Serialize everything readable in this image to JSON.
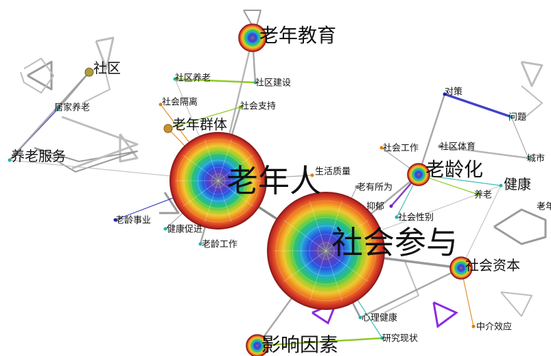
{
  "nodes": [
    {
      "id": "laonianren",
      "label": "老年人",
      "size": "xl",
      "label_size": "xl",
      "color": "#888888",
      "rings": true
    },
    {
      "id": "shehuicanyu",
      "label": "社会参与",
      "size": "xxl",
      "label_size": "xl",
      "color": "#888888",
      "rings": true
    },
    {
      "id": "laoninajiaoyu",
      "label": "老年教育",
      "size": "m",
      "label_size": "l",
      "color": "#c0504d",
      "rings": true
    },
    {
      "id": "laolinghua",
      "label": "老龄化",
      "size": "s",
      "label_size": "l",
      "color": "#c0504d",
      "rings": true
    },
    {
      "id": "shehuiziben",
      "label": "社会资本",
      "size": "s",
      "label_size": "m",
      "color": "#d4a017",
      "rings": true
    },
    {
      "id": "yingxiangyinsu",
      "label": "影响因素",
      "size": "s",
      "label_size": "l",
      "color": "#c0504d",
      "rings": true
    },
    {
      "id": "laoniangunti",
      "label": "老年群体",
      "size": "xs",
      "label_size": "m",
      "color": "#c8922c"
    },
    {
      "id": "shequ",
      "label": "社区",
      "size": "xs",
      "label_size": "m",
      "color": "#a9a040"
    },
    {
      "id": "yanglaofuwu",
      "label": "养老服务",
      "size": "xxs",
      "label_size": "m",
      "color": "#20b2aa"
    },
    {
      "id": "jujiayanglao",
      "label": "居家养老",
      "size": "xxs",
      "label_size": "s",
      "color": "#20b2aa"
    },
    {
      "id": "shequyanglao",
      "label": "社区养老",
      "size": "xxs",
      "label_size": "s",
      "color": "#20b2aa"
    },
    {
      "id": "shequjianshe",
      "label": "社区建设",
      "size": "xxs",
      "label_size": "s",
      "color": "#20b2aa"
    },
    {
      "id": "shehuigeli",
      "label": "社会隔离",
      "size": "xxs",
      "label_size": "s",
      "color": "#e07b00"
    },
    {
      "id": "shehuizhichi",
      "label": "社会支持",
      "size": "xxs",
      "label_size": "s",
      "color": "#7cc000"
    },
    {
      "id": "shenghuozhiliang",
      "label": "生活质量",
      "size": "xxs",
      "label_size": "s",
      "color": "#e07b00"
    },
    {
      "id": "laoyousuowei",
      "label": "老有所为",
      "size": "xxs",
      "label_size": "s",
      "color": "#888888"
    },
    {
      "id": "shehuigongzuo",
      "label": "社会工作",
      "size": "xxs",
      "label_size": "s",
      "color": "#e07b00"
    },
    {
      "id": "shequtiyu",
      "label": "社区体育",
      "size": "xxs",
      "label_size": "s",
      "color": "#888888"
    },
    {
      "id": "duice",
      "label": "对策",
      "size": "xxs",
      "label_size": "s",
      "color": "#2020c0"
    },
    {
      "id": "wenti",
      "label": "问题",
      "size": "xxs",
      "label_size": "s",
      "color": "#20b2aa"
    },
    {
      "id": "chengshi",
      "label": "城市",
      "size": "xxs",
      "label_size": "s",
      "color": "#20b2aa"
    },
    {
      "id": "jiankang",
      "label": "健康",
      "size": "xxs",
      "label_size": "m",
      "color": "#20b2aa"
    },
    {
      "id": "yanglao",
      "label": "养老",
      "size": "xxs",
      "label_size": "s",
      "color": "#7cc000"
    },
    {
      "id": "laonian",
      "label": "老年",
      "size": "xxs",
      "label_size": "s",
      "color": "#888888"
    },
    {
      "id": "yizheng",
      "label": "抑郁",
      "size": "xxs",
      "label_size": "s",
      "color": "#7020c0"
    },
    {
      "id": "shehuixingbie",
      "label": "社会性别",
      "size": "xxs",
      "label_size": "s",
      "color": "#20b2aa"
    },
    {
      "id": "laolingshiye",
      "label": "老龄事业",
      "size": "xxs",
      "label_size": "s",
      "color": "#2020c0"
    },
    {
      "id": "jiankangcujin",
      "label": "健康促进",
      "size": "xxs",
      "label_size": "s",
      "color": "#20b2aa"
    },
    {
      "id": "laolinggongzuo",
      "label": "老龄工作",
      "size": "xxs",
      "label_size": "s",
      "color": "#20b2aa"
    },
    {
      "id": "xinlijiankang",
      "label": "心理健康",
      "size": "xxs",
      "label_size": "s",
      "color": "#20b2aa"
    },
    {
      "id": "zhongjiexiaoying",
      "label": "中介效应",
      "size": "xxs",
      "label_size": "s",
      "color": "#e07b00"
    },
    {
      "id": "yanjiuxianzhuang",
      "label": "研究现状",
      "size": "xxs",
      "label_size": "s",
      "color": "#20b2aa"
    }
  ],
  "edges": [
    {
      "from": "laonianren",
      "to": "shehuicanyu",
      "color": "#777777",
      "weight": "heavy"
    },
    {
      "from": "laonianren",
      "to": "laoniangunti",
      "color": "#e07b00",
      "weight": "light"
    },
    {
      "from": "laonianren",
      "to": "shenghuozhiliang",
      "color": "#999999",
      "weight": "light"
    },
    {
      "from": "laonianren",
      "to": "laolingshiye",
      "color": "#2020c0",
      "weight": "light"
    },
    {
      "from": "laonianren",
      "to": "jiankangcujin",
      "color": "#999999",
      "weight": "light"
    },
    {
      "from": "laonianren",
      "to": "laolinggongzuo",
      "color": "#999999",
      "weight": "medium"
    },
    {
      "from": "laonianren",
      "to": "yanglaofuwu",
      "color": "#bbbbbb",
      "weight": "light"
    },
    {
      "from": "laonianren",
      "to": "shehuigeli",
      "color": "#e07b00",
      "weight": "light"
    },
    {
      "from": "laonianren",
      "to": "shehuizhichi",
      "color": "#999999",
      "weight": "medium"
    },
    {
      "from": "laonianren",
      "to": "shequyanglao",
      "color": "#bbbbbb",
      "weight": "light"
    },
    {
      "from": "shehuicanyu",
      "to": "laolinghua",
      "color": "#999999",
      "weight": "medium"
    },
    {
      "from": "shehuicanyu",
      "to": "shehuiziben",
      "color": "#888888",
      "weight": "heavy"
    },
    {
      "from": "shehuicanyu",
      "to": "yingxiangyinsu",
      "color": "#999999",
      "weight": "medium"
    },
    {
      "from": "shehuicanyu",
      "to": "xinlijiankang",
      "color": "#888888",
      "weight": "medium"
    },
    {
      "from": "shehuicanyu",
      "to": "laoyousuowei",
      "color": "#999999",
      "weight": "light"
    },
    {
      "from": "shehuicanyu",
      "to": "jiankang",
      "color": "#bbbbbb",
      "weight": "light"
    },
    {
      "from": "shehuicanyu",
      "to": "yanjiuxianzhuang",
      "color": "#20b2aa",
      "weight": "light"
    },
    {
      "from": "laolinghua",
      "to": "shehuigongzuo",
      "color": "#999999",
      "weight": "light"
    },
    {
      "from": "laolinghua",
      "to": "jiankang",
      "color": "#20b2aa",
      "weight": "light"
    },
    {
      "from": "laolinghua",
      "to": "yizheng",
      "color": "#7020c0",
      "weight": "medium"
    },
    {
      "from": "laolinghua",
      "to": "shehuixingbie",
      "color": "#20b2aa",
      "weight": "light"
    },
    {
      "from": "laolinghua",
      "to": "yanglao",
      "color": "#7cc000",
      "weight": "light"
    },
    {
      "from": "laolinghua",
      "to": "duice",
      "color": "#999999",
      "weight": "medium"
    },
    {
      "from": "duice",
      "to": "wenti",
      "color": "#2020c0",
      "weight": "heavy"
    },
    {
      "from": "wenti",
      "to": "chengshi",
      "color": "#999999",
      "weight": "light"
    },
    {
      "from": "shequtiyu",
      "to": "chengshi",
      "color": "#aaaaaa",
      "weight": "medium"
    },
    {
      "from": "shehuiziben",
      "to": "zhongjiexiaoying",
      "color": "#e07b00",
      "weight": "light"
    },
    {
      "from": "shehuiziben",
      "to": "xinlijiankang",
      "color": "#999999",
      "weight": "medium"
    },
    {
      "from": "shehuiziben",
      "to": "jiankang",
      "color": "#bbbbbb",
      "weight": "light"
    },
    {
      "from": "yingxiangyinsu",
      "to": "yanjiuxianzhuang",
      "color": "#7cc000",
      "weight": "medium"
    },
    {
      "from": "laoninajiaoyu",
      "to": "shequjianshe",
      "color": "#999999",
      "weight": "medium"
    },
    {
      "from": "laoninajiaoyu",
      "to": "laonianren",
      "color": "#aaaaaa",
      "weight": "medium"
    },
    {
      "from": "shequyanglao",
      "to": "shequjianshe",
      "color": "#7cc000",
      "weight": "medium"
    },
    {
      "from": "shequ",
      "to": "jujiayanglao",
      "color": "#999999",
      "weight": "medium"
    },
    {
      "from": "jujiayanglao",
      "to": "yanglaofuwu",
      "color": "#2020c0",
      "weight": "light"
    },
    {
      "from": "shequ",
      "to": "yanglaofuwu",
      "color": "#999999",
      "weight": "medium"
    },
    {
      "from": "shehuizhichi",
      "to": "laoniangunti",
      "color": "#7cc000",
      "weight": "light"
    }
  ]
}
